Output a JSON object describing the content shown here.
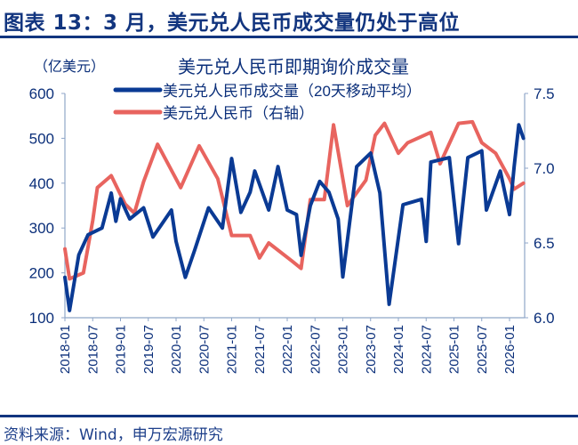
{
  "header": {
    "title": "图表 13：3 月，美元兑人民币成交量仍处于高位"
  },
  "footer": {
    "source": "资料来源：Wind，申万宏源研究"
  },
  "chart_data": {
    "type": "line",
    "title": "美元兑人民币即期询价成交量",
    "ylabel": "（亿美元）",
    "ylim": [
      100,
      600
    ],
    "y_ticks": [
      "600",
      "500",
      "400",
      "300",
      "200",
      "100"
    ],
    "y2lim": [
      6.0,
      7.5
    ],
    "y2_ticks": [
      "7.5",
      "7.0",
      "6.5",
      "6.0"
    ],
    "x_ticks": [
      "2018-01",
      "2018-07",
      "2019-01",
      "2019-07",
      "2020-01",
      "2020-07",
      "2021-01",
      "2021-07",
      "2022-01",
      "2022-07",
      "2023-01",
      "2023-07",
      "2024-01",
      "2024-07",
      "2025-01",
      "2025-07",
      "2026-01"
    ],
    "legend_placement": "top",
    "grid": false,
    "series": [
      {
        "name": "美元兑人民币成交量（20天移动平均）",
        "axis": "left",
        "color": "#0a3a94",
        "points": [
          [
            "2018-01",
            190
          ],
          [
            "2018-02",
            116
          ],
          [
            "2018-04",
            240
          ],
          [
            "2018-06",
            285
          ],
          [
            "2018-09",
            300
          ],
          [
            "2018-11",
            378
          ],
          [
            "2018-12",
            315
          ],
          [
            "2019-01",
            365
          ],
          [
            "2019-03",
            320
          ],
          [
            "2019-06",
            345
          ],
          [
            "2019-08",
            280
          ],
          [
            "2019-12",
            340
          ],
          [
            "2020-01",
            270
          ],
          [
            "2020-03",
            190
          ],
          [
            "2020-05",
            250
          ],
          [
            "2020-08",
            345
          ],
          [
            "2020-11",
            300
          ],
          [
            "2021-01",
            455
          ],
          [
            "2021-03",
            335
          ],
          [
            "2021-05",
            380
          ],
          [
            "2021-06",
            427
          ],
          [
            "2021-09",
            340
          ],
          [
            "2021-11",
            437
          ],
          [
            "2022-01",
            340
          ],
          [
            "2022-03",
            330
          ],
          [
            "2022-04",
            239
          ],
          [
            "2022-06",
            350
          ],
          [
            "2022-08",
            404
          ],
          [
            "2022-10",
            380
          ],
          [
            "2022-12",
            320
          ],
          [
            "2023-01",
            191
          ],
          [
            "2023-04",
            437
          ],
          [
            "2023-07",
            467
          ],
          [
            "2023-09",
            378
          ],
          [
            "2023-11",
            130
          ],
          [
            "2024-02",
            352
          ],
          [
            "2024-06",
            364
          ],
          [
            "2024-07",
            270
          ],
          [
            "2024-08",
            447
          ],
          [
            "2024-12",
            457
          ],
          [
            "2025-02",
            265
          ],
          [
            "2025-04",
            457
          ],
          [
            "2025-07",
            472
          ],
          [
            "2025-08",
            340
          ],
          [
            "2025-11",
            427
          ],
          [
            "2026-01",
            330
          ],
          [
            "2026-02",
            437
          ],
          [
            "2026-03",
            530
          ],
          [
            "2026-04",
            500
          ]
        ]
      },
      {
        "name": "美元兑人民币（右轴）",
        "axis": "right",
        "color": "#e8645f",
        "points": [
          [
            "2018-01",
            6.46
          ],
          [
            "2018-02",
            6.26
          ],
          [
            "2018-05",
            6.3
          ],
          [
            "2018-07",
            6.65
          ],
          [
            "2018-08",
            6.87
          ],
          [
            "2018-11",
            6.95
          ],
          [
            "2019-02",
            6.76
          ],
          [
            "2019-04",
            6.7
          ],
          [
            "2019-06",
            6.91
          ],
          [
            "2019-09",
            7.16
          ],
          [
            "2020-02",
            6.87
          ],
          [
            "2020-06",
            7.15
          ],
          [
            "2020-10",
            6.93
          ],
          [
            "2021-01",
            6.55
          ],
          [
            "2021-05",
            6.55
          ],
          [
            "2021-07",
            6.4
          ],
          [
            "2021-09",
            6.5
          ],
          [
            "2022-02",
            6.38
          ],
          [
            "2022-04",
            6.33
          ],
          [
            "2022-06",
            6.79
          ],
          [
            "2022-09",
            6.79
          ],
          [
            "2022-11",
            7.29
          ],
          [
            "2023-02",
            6.75
          ],
          [
            "2023-06",
            6.92
          ],
          [
            "2023-08",
            7.22
          ],
          [
            "2023-10",
            7.3
          ],
          [
            "2024-01",
            7.1
          ],
          [
            "2024-03",
            7.17
          ],
          [
            "2024-08",
            7.24
          ],
          [
            "2024-10",
            7.03
          ],
          [
            "2025-02",
            7.3
          ],
          [
            "2025-05",
            7.31
          ],
          [
            "2025-07",
            7.17
          ],
          [
            "2025-10",
            7.1
          ],
          [
            "2026-01",
            6.93
          ],
          [
            "2026-02",
            6.86
          ],
          [
            "2026-04",
            6.9
          ]
        ]
      }
    ]
  }
}
